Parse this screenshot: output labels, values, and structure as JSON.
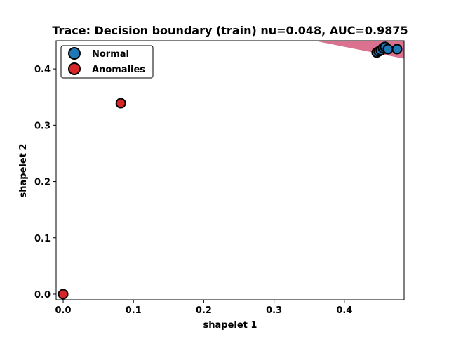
{
  "chart_data": {
    "type": "scatter",
    "title": "Trace: Decision boundary (train) nu=0.048, AUC=0.9875",
    "xlabel": "shapelet 1",
    "ylabel": "shapelet 2",
    "xlim": [
      -0.01,
      0.485
    ],
    "ylim": [
      -0.01,
      0.45
    ],
    "xticks": [
      "0.0",
      "0.1",
      "0.2",
      "0.3",
      "0.4"
    ],
    "yticks": [
      "0.0",
      "0.1",
      "0.2",
      "0.3",
      "0.4"
    ],
    "grid": false,
    "legend_position": "upper-left",
    "decision_region": {
      "color": "#d9718f",
      "vertices": [
        [
          0.357,
          0.45
        ],
        [
          0.485,
          0.45
        ],
        [
          0.485,
          0.418
        ]
      ]
    },
    "series": [
      {
        "name": "Normal",
        "color": "#1f77b4",
        "points": [
          [
            0.446,
            0.429
          ],
          [
            0.449,
            0.431
          ],
          [
            0.452,
            0.433
          ],
          [
            0.455,
            0.437
          ],
          [
            0.458,
            0.439
          ],
          [
            0.462,
            0.435
          ],
          [
            0.475,
            0.435
          ]
        ]
      },
      {
        "name": "Anomalies",
        "color": "#d62728",
        "points": [
          [
            0.082,
            0.339
          ],
          [
            0.0,
            0.0
          ]
        ]
      }
    ]
  }
}
